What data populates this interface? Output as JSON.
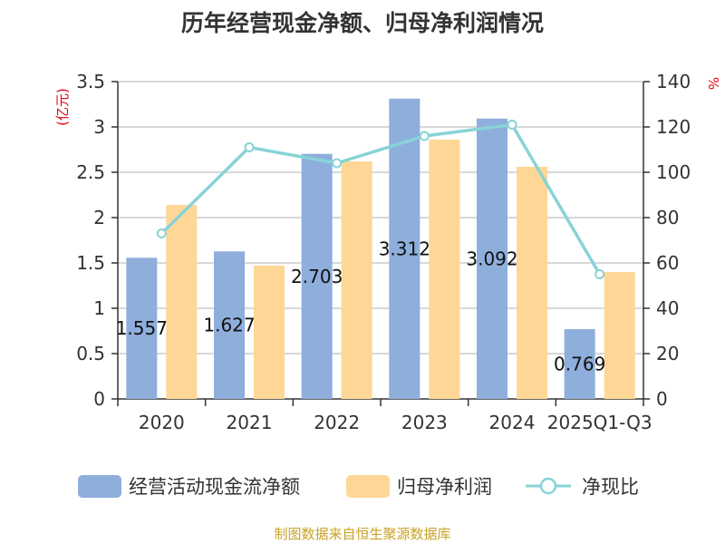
{
  "chart_data": {
    "type": "bar",
    "title": "历年经营现金净额、归母净利润情况",
    "categories": [
      "2020",
      "2021",
      "2022",
      "2023",
      "2024",
      "2025Q1-Q3"
    ],
    "series": [
      {
        "name": "经营活动现金流净额",
        "type": "bar",
        "axis": "left",
        "color": "#8eaedb",
        "values": [
          1.557,
          1.627,
          2.703,
          3.312,
          3.092,
          0.769
        ],
        "labels": [
          "1.557",
          "1.627",
          "2.703",
          "3.312",
          "3.092",
          "0.769"
        ]
      },
      {
        "name": "归母净利润",
        "type": "bar",
        "axis": "left",
        "color": "#fed796",
        "values": [
          2.14,
          1.47,
          2.62,
          2.86,
          2.56,
          1.4
        ]
      },
      {
        "name": "净现比",
        "type": "line",
        "axis": "right",
        "color": "#88d3d6",
        "values": [
          73,
          111,
          104,
          116,
          121,
          55
        ]
      }
    ],
    "y_left": {
      "label": "(亿元)",
      "range": [
        0,
        3.5
      ],
      "ticks": [
        "0",
        "0.5",
        "1",
        "1.5",
        "2",
        "2.5",
        "3",
        "3.5"
      ]
    },
    "y_right": {
      "label": "%",
      "range": [
        0,
        140
      ],
      "ticks": [
        "0",
        "20",
        "40",
        "60",
        "80",
        "100",
        "120",
        "140"
      ]
    },
    "grid": true,
    "legend_position": "bottom",
    "source": "制图数据来自恒生聚源数据库"
  }
}
